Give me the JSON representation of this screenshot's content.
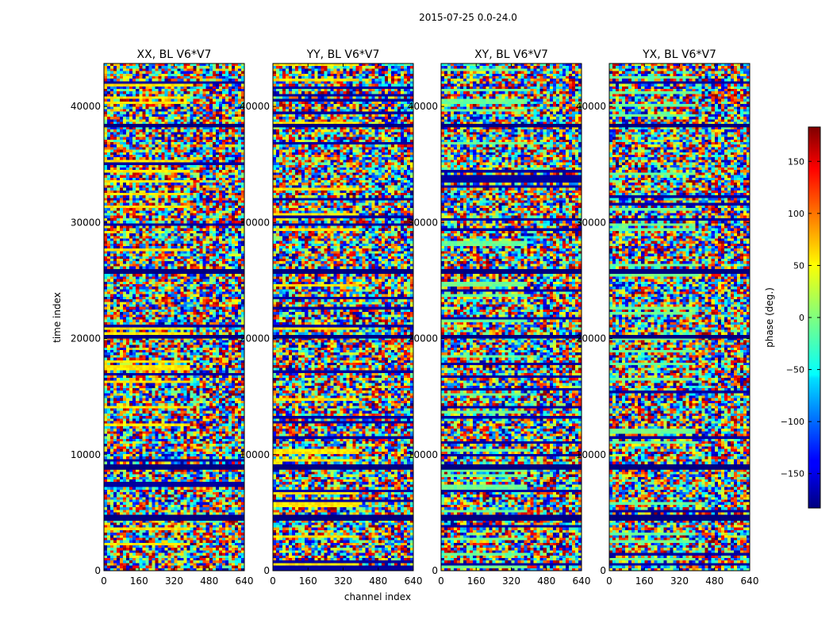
{
  "chart_data": {
    "type": "heatmap",
    "suptitle": "2015-07-25 0.0-24.0",
    "panels": [
      {
        "title": "XX, BL V6*V7",
        "polarization": "XX"
      },
      {
        "title": "YY, BL V6*V7",
        "polarization": "YY"
      },
      {
        "title": "XY, BL V6*V7",
        "polarization": "XY"
      },
      {
        "title": "YX, BL V6*V7",
        "polarization": "YX"
      }
    ],
    "xlabel": "channel index",
    "ylabel": "time index",
    "xlim": [
      0,
      640
    ],
    "ylim": [
      0,
      43700
    ],
    "xticks": [
      0,
      160,
      320,
      480,
      640
    ],
    "yticks": [
      0,
      10000,
      20000,
      30000,
      40000
    ],
    "colorbar": {
      "label": "phase (deg.)",
      "vmin": -183,
      "vmax": 183,
      "colormap": "jet",
      "ticks": [
        150,
        100,
        50,
        0,
        -50,
        -100,
        -150
      ],
      "tick_labels": [
        "150",
        "100",
        "50",
        "0",
        "−50",
        "−100",
        "−150"
      ]
    },
    "flagged_time_bands": [
      [
        4300,
        4700
      ],
      [
        8700,
        9100
      ],
      [
        20000,
        20250
      ],
      [
        25600,
        25900
      ],
      [
        38200,
        38500
      ]
    ],
    "colors": {
      "jet": [
        "#00007f",
        "#0000ff",
        "#007fff",
        "#00ffff",
        "#7fff7f",
        "#ffff00",
        "#ff7f00",
        "#ff0000",
        "#7f0000"
      ],
      "flag": "#00007f"
    }
  }
}
